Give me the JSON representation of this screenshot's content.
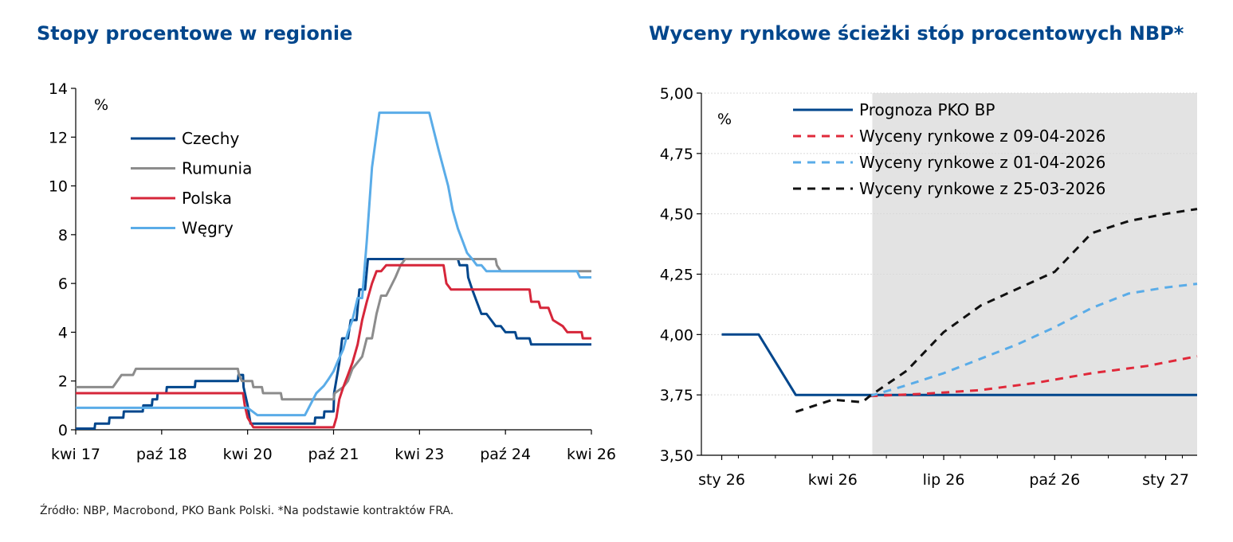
{
  "source": "Źródło: NBP, Macrobond, PKO Bank Polski. *Na podstawie kontraktów FRA.",
  "chart_data": [
    {
      "type": "line",
      "title": "Stopy procentowe w regionie",
      "unit": "%",
      "ylim": [
        0,
        14
      ],
      "yticks": [
        "0",
        "2",
        "4",
        "6",
        "8",
        "10",
        "12",
        "14"
      ],
      "xlim": [
        2017.25,
        2026.25
      ],
      "xticks": [
        {
          "label": "kwi 17",
          "x": 2017.25
        },
        {
          "label": "paź 18",
          "x": 2018.75
        },
        {
          "label": "kwi 20",
          "x": 2020.25
        },
        {
          "label": "paź 21",
          "x": 2021.75
        },
        {
          "label": "kwi 23",
          "x": 2023.25
        },
        {
          "label": "paź 24",
          "x": 2024.75
        },
        {
          "label": "kwi 26",
          "x": 2026.25
        }
      ],
      "legend": "top-left",
      "series": [
        {
          "name": "Czechy",
          "color": "#00468c",
          "width": 3,
          "dash": "",
          "points": [
            [
              2017.25,
              0.05
            ],
            [
              2017.58,
              0.05
            ],
            [
              2017.59,
              0.25
            ],
            [
              2017.83,
              0.25
            ],
            [
              2017.84,
              0.5
            ],
            [
              2018.08,
              0.5
            ],
            [
              2018.09,
              0.75
            ],
            [
              2018.42,
              0.75
            ],
            [
              2018.43,
              1.0
            ],
            [
              2018.58,
              1.0
            ],
            [
              2018.59,
              1.25
            ],
            [
              2018.67,
              1.25
            ],
            [
              2018.68,
              1.5
            ],
            [
              2018.83,
              1.5
            ],
            [
              2018.84,
              1.75
            ],
            [
              2019.33,
              1.75
            ],
            [
              2019.34,
              2.0
            ],
            [
              2020.08,
              2.0
            ],
            [
              2020.09,
              2.25
            ],
            [
              2020.17,
              2.25
            ],
            [
              2020.18,
              1.75
            ],
            [
              2020.25,
              1.0
            ],
            [
              2020.3,
              0.25
            ],
            [
              2021.42,
              0.25
            ],
            [
              2021.43,
              0.5
            ],
            [
              2021.58,
              0.5
            ],
            [
              2021.59,
              0.75
            ],
            [
              2021.75,
              0.75
            ],
            [
              2021.76,
              1.5
            ],
            [
              2021.85,
              2.75
            ],
            [
              2021.9,
              3.75
            ],
            [
              2022.0,
              3.75
            ],
            [
              2022.05,
              4.5
            ],
            [
              2022.15,
              4.5
            ],
            [
              2022.2,
              5.75
            ],
            [
              2022.3,
              5.75
            ],
            [
              2022.35,
              7.0
            ],
            [
              2023.92,
              7.0
            ],
            [
              2023.95,
              6.75
            ],
            [
              2024.08,
              6.75
            ],
            [
              2024.1,
              6.25
            ],
            [
              2024.17,
              5.75
            ],
            [
              2024.25,
              5.25
            ],
            [
              2024.33,
              4.75
            ],
            [
              2024.42,
              4.75
            ],
            [
              2024.5,
              4.5
            ],
            [
              2024.58,
              4.25
            ],
            [
              2024.67,
              4.25
            ],
            [
              2024.75,
              4.0
            ],
            [
              2024.92,
              4.0
            ],
            [
              2024.95,
              3.75
            ],
            [
              2025.17,
              3.75
            ],
            [
              2025.2,
              3.5
            ],
            [
              2026.25,
              3.5
            ]
          ]
        },
        {
          "name": "Rumunia",
          "color": "#8c8c8c",
          "width": 3,
          "dash": "",
          "points": [
            [
              2017.25,
              1.75
            ],
            [
              2017.9,
              1.75
            ],
            [
              2018.05,
              2.25
            ],
            [
              2018.25,
              2.25
            ],
            [
              2018.3,
              2.5
            ],
            [
              2020.08,
              2.5
            ],
            [
              2020.1,
              2.25
            ],
            [
              2020.15,
              2.0
            ],
            [
              2020.33,
              2.0
            ],
            [
              2020.35,
              1.75
            ],
            [
              2020.5,
              1.75
            ],
            [
              2020.52,
              1.5
            ],
            [
              2020.83,
              1.5
            ],
            [
              2020.85,
              1.25
            ],
            [
              2021.75,
              1.25
            ],
            [
              2021.77,
              1.5
            ],
            [
              2021.92,
              1.75
            ],
            [
              2022.0,
              2.0
            ],
            [
              2022.08,
              2.5
            ],
            [
              2022.25,
              3.0
            ],
            [
              2022.33,
              3.75
            ],
            [
              2022.42,
              3.75
            ],
            [
              2022.5,
              4.75
            ],
            [
              2022.58,
              5.5
            ],
            [
              2022.67,
              5.5
            ],
            [
              2022.83,
              6.25
            ],
            [
              2022.92,
              6.75
            ],
            [
              2023.0,
              7.0
            ],
            [
              2024.58,
              7.0
            ],
            [
              2024.6,
              6.75
            ],
            [
              2024.67,
              6.5
            ],
            [
              2026.25,
              6.5
            ]
          ]
        },
        {
          "name": "Polska",
          "color": "#d6263a",
          "width": 3,
          "dash": "",
          "points": [
            [
              2017.25,
              1.5
            ],
            [
              2020.17,
              1.5
            ],
            [
              2020.2,
              1.0
            ],
            [
              2020.25,
              0.5
            ],
            [
              2020.35,
              0.1
            ],
            [
              2021.75,
              0.1
            ],
            [
              2021.8,
              0.5
            ],
            [
              2021.85,
              1.25
            ],
            [
              2021.92,
              1.75
            ],
            [
              2022.0,
              2.25
            ],
            [
              2022.08,
              2.75
            ],
            [
              2022.17,
              3.5
            ],
            [
              2022.25,
              4.5
            ],
            [
              2022.33,
              5.25
            ],
            [
              2022.42,
              6.0
            ],
            [
              2022.5,
              6.5
            ],
            [
              2022.58,
              6.5
            ],
            [
              2022.67,
              6.75
            ],
            [
              2023.67,
              6.75
            ],
            [
              2023.72,
              6.0
            ],
            [
              2023.8,
              5.75
            ],
            [
              2025.17,
              5.75
            ],
            [
              2025.2,
              5.25
            ],
            [
              2025.33,
              5.25
            ],
            [
              2025.36,
              5.0
            ],
            [
              2025.5,
              5.0
            ],
            [
              2025.58,
              4.5
            ],
            [
              2025.75,
              4.25
            ],
            [
              2025.83,
              4.0
            ],
            [
              2026.08,
              4.0
            ],
            [
              2026.1,
              3.75
            ],
            [
              2026.25,
              3.75
            ]
          ]
        },
        {
          "name": "Węgry",
          "color": "#5aace8",
          "width": 3,
          "dash": "",
          "points": [
            [
              2017.25,
              0.9
            ],
            [
              2020.25,
              0.9
            ],
            [
              2020.42,
              0.6
            ],
            [
              2021.25,
              0.6
            ],
            [
              2021.45,
              1.5
            ],
            [
              2021.58,
              1.8
            ],
            [
              2021.67,
              2.1
            ],
            [
              2021.75,
              2.4
            ],
            [
              2021.83,
              2.85
            ],
            [
              2021.92,
              3.3
            ],
            [
              2022.0,
              4.0
            ],
            [
              2022.08,
              4.5
            ],
            [
              2022.17,
              5.4
            ],
            [
              2022.25,
              5.4
            ],
            [
              2022.33,
              7.75
            ],
            [
              2022.42,
              10.75
            ],
            [
              2022.55,
              13.0
            ],
            [
              2023.42,
              13.0
            ],
            [
              2023.58,
              11.5
            ],
            [
              2023.75,
              10.0
            ],
            [
              2023.83,
              9.0
            ],
            [
              2023.92,
              8.25
            ],
            [
              2024.0,
              7.75
            ],
            [
              2024.08,
              7.25
            ],
            [
              2024.17,
              7.0
            ],
            [
              2024.25,
              6.75
            ],
            [
              2024.33,
              6.75
            ],
            [
              2024.42,
              6.5
            ],
            [
              2026.0,
              6.5
            ],
            [
              2026.05,
              6.25
            ],
            [
              2026.25,
              6.25
            ]
          ]
        }
      ]
    },
    {
      "type": "line",
      "title": "Wyceny rynkowe ścieżki stóp procentowych NBP*",
      "unit": "%",
      "ylim": [
        3.5,
        5.0
      ],
      "yticks": [
        "3,50",
        "3,75",
        "4,00",
        "4,25",
        "4,50",
        "4,75",
        "5,00"
      ],
      "xlim": [
        -0.05,
        13.35
      ],
      "xticks": [
        {
          "label": "sty 26",
          "x": 0.5
        },
        {
          "label": "kwi 26",
          "x": 3.5
        },
        {
          "label": "lip 26",
          "x": 6.5
        },
        {
          "label": "paź 26",
          "x": 9.5
        },
        {
          "label": "sty 27",
          "x": 12.5
        }
      ],
      "shade_from": 4.57,
      "legend": "top-left",
      "series": [
        {
          "name": "Prognoza PKO BP",
          "color": "#00468c",
          "width": 3,
          "dash": "",
          "points": [
            [
              0.5,
              4.0
            ],
            [
              1.5,
              4.0
            ],
            [
              2.5,
              3.75
            ],
            [
              13.35,
              3.75
            ]
          ]
        },
        {
          "name": "Wyceny rynkowe z 09-04-2026",
          "color": "#e0293a",
          "width": 3,
          "dash": "10,8",
          "points": [
            [
              4.5,
              3.745
            ],
            [
              6.0,
              3.755
            ],
            [
              7.5,
              3.77
            ],
            [
              9.0,
              3.8
            ],
            [
              10.5,
              3.84
            ],
            [
              12.0,
              3.87
            ],
            [
              13.35,
              3.91
            ]
          ]
        },
        {
          "name": "Wyceny rynkowe z 01-04-2026",
          "color": "#5aace8",
          "width": 3,
          "dash": "10,8",
          "points": [
            [
              4.5,
              3.745
            ],
            [
              5.5,
              3.79
            ],
            [
              6.5,
              3.84
            ],
            [
              7.5,
              3.9
            ],
            [
              8.5,
              3.96
            ],
            [
              9.5,
              4.03
            ],
            [
              10.5,
              4.11
            ],
            [
              11.5,
              4.17
            ],
            [
              12.5,
              4.195
            ],
            [
              13.35,
              4.21
            ]
          ]
        },
        {
          "name": "Wyceny rynkowe z 25-03-2026",
          "color": "#111111",
          "width": 3,
          "dash": "10,8",
          "points": [
            [
              2.5,
              3.68
            ],
            [
              3.5,
              3.73
            ],
            [
              4.3,
              3.72
            ],
            [
              4.5,
              3.745
            ],
            [
              5.5,
              3.85
            ],
            [
              6.5,
              4.01
            ],
            [
              7.5,
              4.12
            ],
            [
              8.5,
              4.19
            ],
            [
              9.5,
              4.26
            ],
            [
              10.5,
              4.42
            ],
            [
              11.5,
              4.47
            ],
            [
              12.5,
              4.5
            ],
            [
              13.35,
              4.52
            ]
          ]
        }
      ]
    }
  ]
}
